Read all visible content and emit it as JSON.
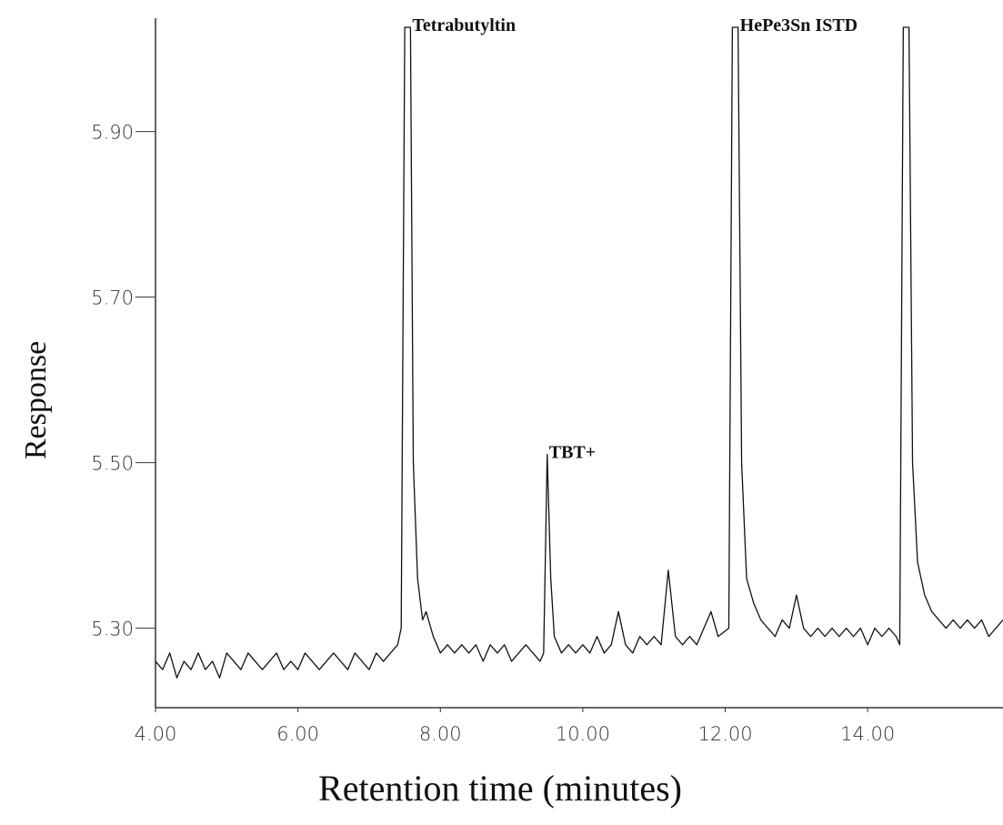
{
  "chart_data": {
    "type": "line",
    "x_label": "Retention time (minutes)",
    "y_label": "Response",
    "xlim": [
      4.0,
      15.9
    ],
    "ylim": [
      5.204,
      6.026
    ],
    "xticks": [
      {
        "value": 4,
        "label": "4.00"
      },
      {
        "value": 6,
        "label": "6.00"
      },
      {
        "value": 8,
        "label": "8.00"
      },
      {
        "value": 10,
        "label": "10.00"
      },
      {
        "value": 12,
        "label": "12.00"
      },
      {
        "value": 14,
        "label": "14.00"
      }
    ],
    "yticks": [
      {
        "value": 5.3,
        "label": "5.30"
      },
      {
        "value": 5.5,
        "label": "5.50"
      },
      {
        "value": 5.7,
        "label": "5.70"
      },
      {
        "value": 5.9,
        "label": "5.90"
      }
    ],
    "grid": false,
    "x": [
      4.0,
      4.1,
      4.2,
      4.3,
      4.4,
      4.5,
      4.6,
      4.7,
      4.8,
      4.9,
      5.0,
      5.1,
      5.2,
      5.3,
      5.4,
      5.5,
      5.6,
      5.7,
      5.8,
      5.9,
      6.0,
      6.1,
      6.2,
      6.3,
      6.4,
      6.5,
      6.6,
      6.7,
      6.8,
      6.9,
      7.0,
      7.1,
      7.2,
      7.3,
      7.4,
      7.45,
      7.5,
      7.58,
      7.62,
      7.68,
      7.75,
      7.8,
      7.9,
      8.0,
      8.1,
      8.2,
      8.3,
      8.4,
      8.5,
      8.6,
      8.7,
      8.8,
      8.9,
      9.0,
      9.1,
      9.2,
      9.3,
      9.4,
      9.45,
      9.5,
      9.55,
      9.6,
      9.7,
      9.8,
      9.9,
      10.0,
      10.1,
      10.2,
      10.3,
      10.4,
      10.5,
      10.6,
      10.7,
      10.8,
      10.9,
      11.0,
      11.1,
      11.2,
      11.3,
      11.4,
      11.5,
      11.6,
      11.7,
      11.8,
      11.9,
      12.05,
      12.1,
      12.18,
      12.23,
      12.3,
      12.4,
      12.5,
      12.6,
      12.7,
      12.8,
      12.9,
      13.0,
      13.1,
      13.2,
      13.3,
      13.4,
      13.5,
      13.6,
      13.7,
      13.8,
      13.9,
      14.0,
      14.1,
      14.2,
      14.3,
      14.4,
      14.45,
      14.5,
      14.58,
      14.63,
      14.7,
      14.8,
      14.9,
      15.0,
      15.1,
      15.2,
      15.3,
      15.4,
      15.5,
      15.6,
      15.7,
      15.8,
      15.9
    ],
    "series": [
      {
        "color": "#111111",
        "values": [
          5.26,
          5.25,
          5.27,
          5.24,
          5.26,
          5.25,
          5.27,
          5.25,
          5.26,
          5.24,
          5.27,
          5.26,
          5.25,
          5.27,
          5.26,
          5.25,
          5.26,
          5.27,
          5.25,
          5.26,
          5.25,
          5.27,
          5.26,
          5.25,
          5.26,
          5.27,
          5.26,
          5.25,
          5.27,
          5.26,
          5.25,
          5.27,
          5.26,
          5.27,
          5.28,
          5.3,
          6.026,
          6.026,
          5.5,
          5.36,
          5.31,
          5.32,
          5.29,
          5.27,
          5.28,
          5.27,
          5.28,
          5.27,
          5.28,
          5.26,
          5.28,
          5.27,
          5.28,
          5.26,
          5.27,
          5.28,
          5.27,
          5.26,
          5.27,
          5.51,
          5.36,
          5.29,
          5.27,
          5.28,
          5.27,
          5.28,
          5.27,
          5.29,
          5.27,
          5.28,
          5.32,
          5.28,
          5.27,
          5.29,
          5.28,
          5.29,
          5.28,
          5.37,
          5.29,
          5.28,
          5.29,
          5.28,
          5.3,
          5.32,
          5.29,
          5.3,
          6.026,
          6.026,
          5.5,
          5.36,
          5.33,
          5.31,
          5.3,
          5.29,
          5.31,
          5.3,
          5.34,
          5.3,
          5.29,
          5.3,
          5.29,
          5.3,
          5.29,
          5.3,
          5.29,
          5.3,
          5.28,
          5.3,
          5.29,
          5.3,
          5.29,
          5.28,
          6.026,
          6.026,
          5.5,
          5.38,
          5.34,
          5.32,
          5.31,
          5.3,
          5.31,
          5.3,
          5.31,
          5.3,
          5.31,
          5.29,
          5.3,
          5.31
        ]
      }
    ],
    "annotations": [
      {
        "text": "Tetrabutyltin",
        "x": 7.58,
        "y": 6.026
      },
      {
        "text": "TBT+",
        "x": 9.5,
        "y": 5.51
      },
      {
        "text": "HePe3Sn ISTD",
        "x": 12.18,
        "y": 6.026
      }
    ]
  }
}
